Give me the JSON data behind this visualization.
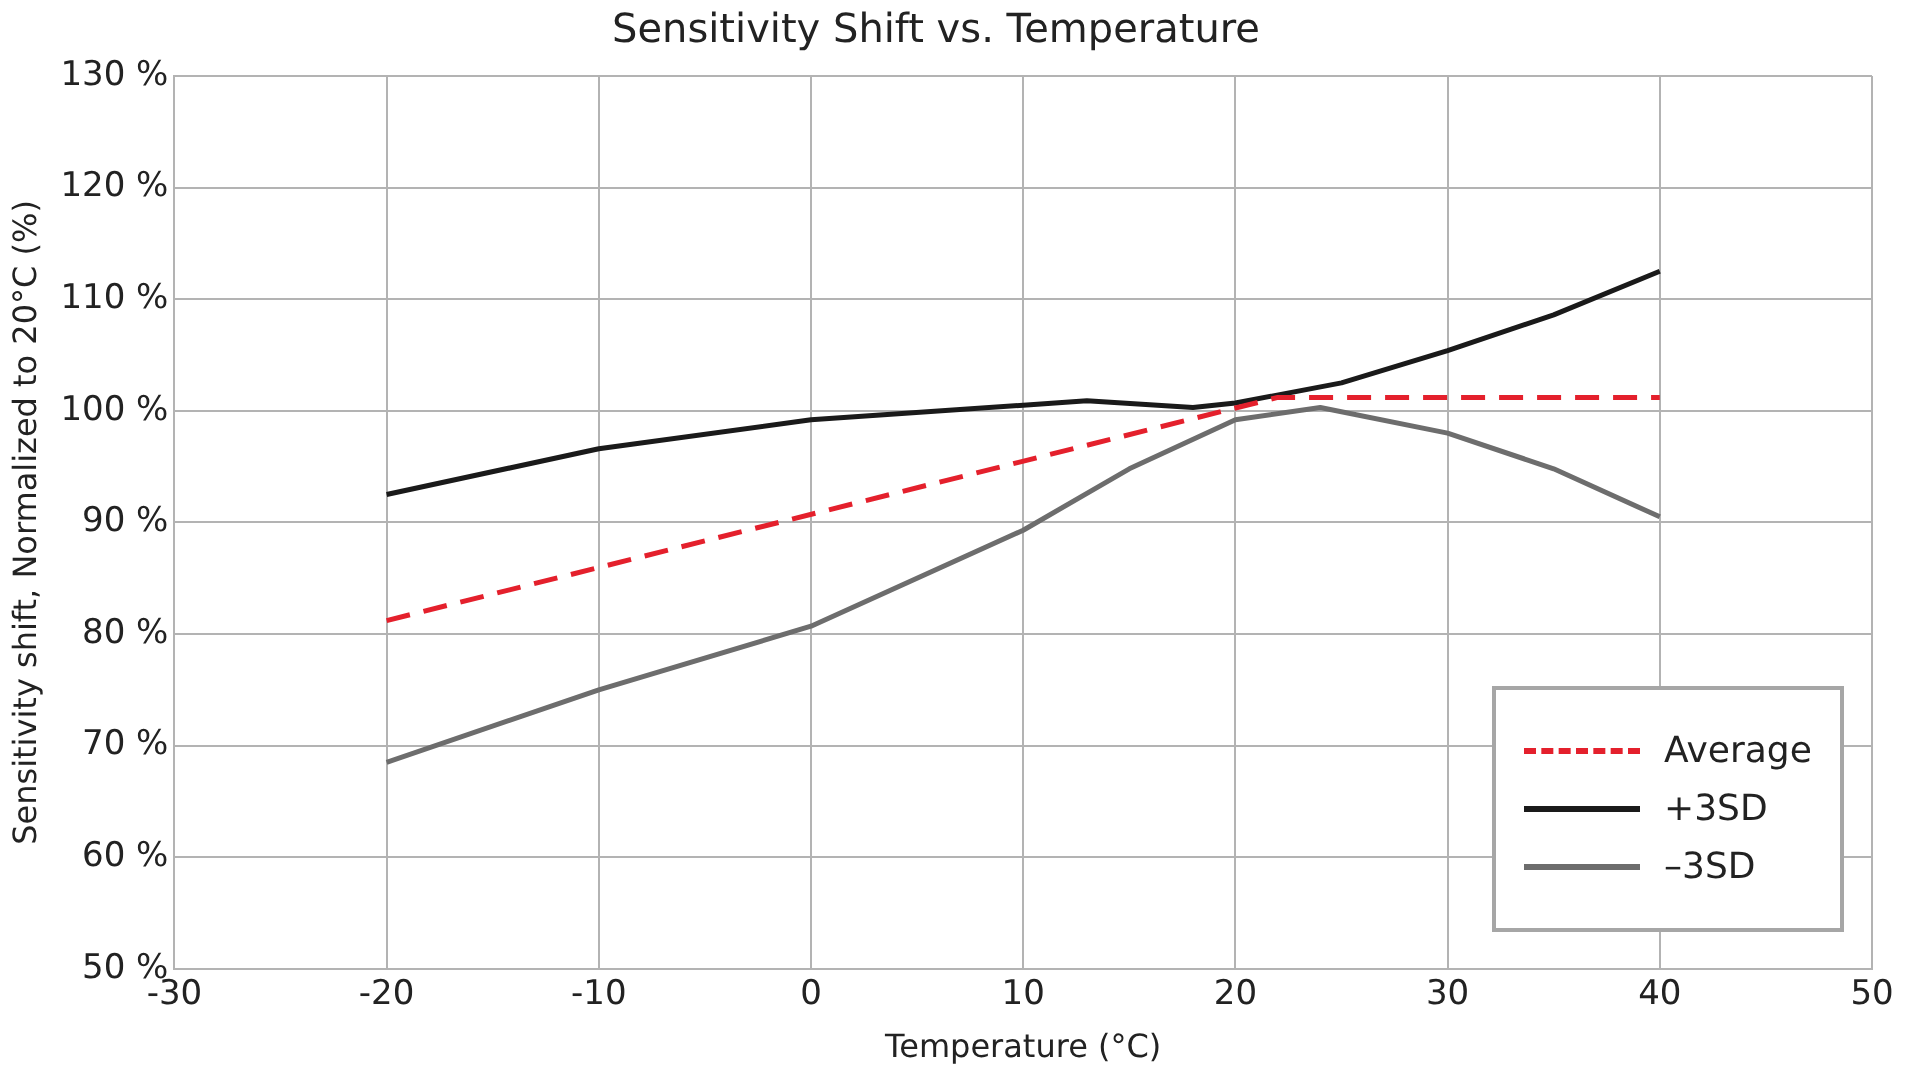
{
  "chart_data": {
    "type": "line",
    "title": "Sensitivity Shift vs. Temperature",
    "xlabel": "Temperature (°C)",
    "ylabel": "Sensitivity shift, Normalized to 20°C (%)",
    "xlim": [
      -30,
      50
    ],
    "xticks": [
      -30,
      -20,
      -10,
      0,
      10,
      20,
      30,
      40,
      50
    ],
    "ylim": [
      50,
      130
    ],
    "yticks": [
      {
        "value": 50,
        "label": "50 %"
      },
      {
        "value": 60,
        "label": "60 %"
      },
      {
        "value": 70,
        "label": "70 %"
      },
      {
        "value": 80,
        "label": "80 %"
      },
      {
        "value": 90,
        "label": "90 %"
      },
      {
        "value": 100,
        "label": "100 %"
      },
      {
        "value": 110,
        "label": "110 %"
      },
      {
        "value": 120,
        "label": "120 %"
      },
      {
        "value": 130,
        "label": "130 %"
      }
    ],
    "grid": true,
    "legend": "bottom right",
    "marker": "none",
    "series": [
      {
        "name": "Average",
        "color": "#e4202c",
        "line_style": "dashed",
        "x": [
          -20,
          22,
          40
        ],
        "values": [
          81.2,
          101.2,
          101.2
        ]
      },
      {
        "name": "+3SD",
        "color": "#1a1a1a",
        "line_style": "solid",
        "x": [
          -20,
          -10,
          0,
          10,
          13,
          18,
          20,
          25,
          30,
          35,
          40
        ],
        "values": [
          92.5,
          96.6,
          99.2,
          100.5,
          100.9,
          100.3,
          100.7,
          102.5,
          105.4,
          108.6,
          112.5
        ]
      },
      {
        "name": "–3SD",
        "color": "#6d6d6d",
        "line_style": "solid",
        "x": [
          -20,
          -10,
          0,
          10,
          15,
          20,
          24,
          30,
          35,
          40
        ],
        "values": [
          68.5,
          75,
          80.7,
          89.3,
          94.8,
          99.2,
          100.3,
          98,
          94.8,
          90.5
        ]
      }
    ]
  }
}
